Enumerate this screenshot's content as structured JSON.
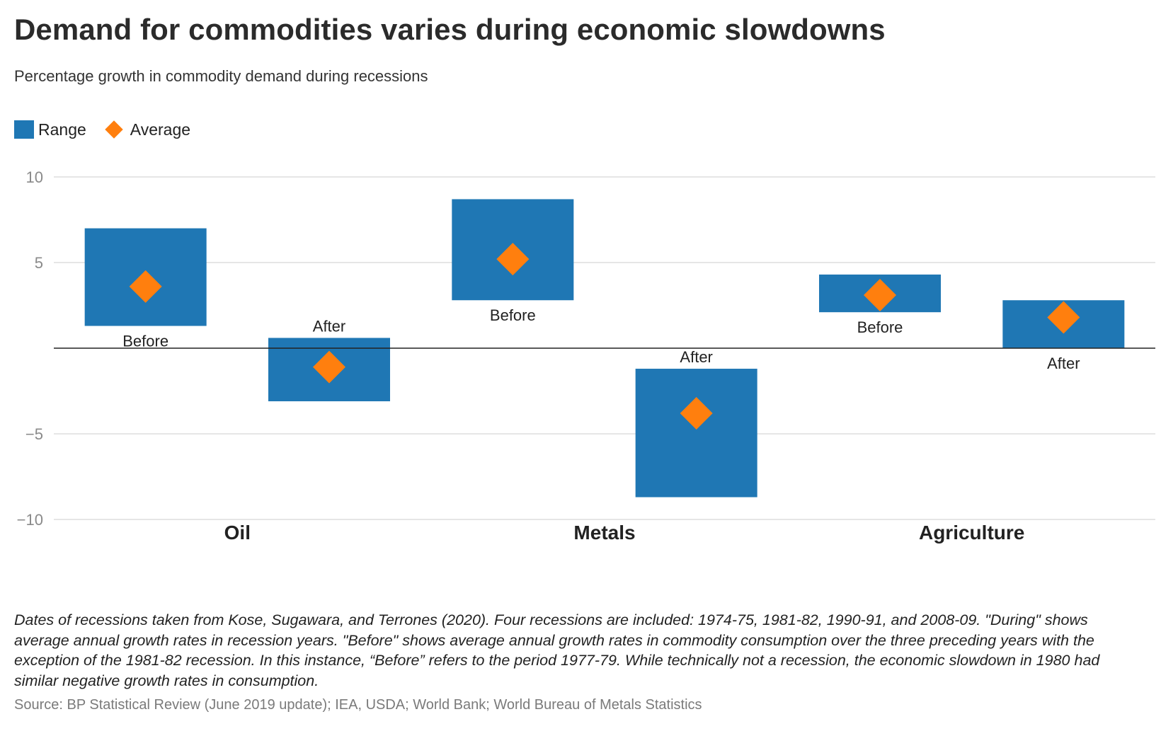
{
  "title": "Demand for commodities varies during economic slowdowns",
  "subtitle": "Percentage growth in commodity demand during recessions",
  "legend": {
    "range_label": "Range",
    "average_label": "Average"
  },
  "colors": {
    "range": "#1f77b4",
    "average": "#ff7f0e",
    "grid": "#dddddd",
    "axis_text": "#8a8a8a"
  },
  "chart_data": {
    "type": "range",
    "title": "Demand for commodities varies during economic slowdowns",
    "subtitle": "Percentage growth in commodity demand during recessions",
    "xlabel": "",
    "ylabel": "",
    "ylim": [
      -10,
      10
    ],
    "yticks": [
      10,
      5,
      0,
      -5,
      -10
    ],
    "ytick_labels": [
      "10",
      "5",
      "",
      "−5",
      "−10"
    ],
    "legend": [
      "Range",
      "Average"
    ],
    "groups": [
      "Oil",
      "Metals",
      "Agriculture"
    ],
    "series": [
      {
        "group": "Oil",
        "period": "Before",
        "min": 1.3,
        "max": 7.0,
        "average": 3.6
      },
      {
        "group": "Oil",
        "period": "After",
        "min": -3.1,
        "max": 0.6,
        "average": -1.1
      },
      {
        "group": "Metals",
        "period": "Before",
        "min": 2.8,
        "max": 8.7,
        "average": 5.2
      },
      {
        "group": "Metals",
        "period": "After",
        "min": -8.7,
        "max": -1.2,
        "average": -3.8
      },
      {
        "group": "Agriculture",
        "period": "Before",
        "min": 2.1,
        "max": 4.3,
        "average": 3.1
      },
      {
        "group": "Agriculture",
        "period": "After",
        "min": 0.0,
        "max": 2.8,
        "average": 1.8
      }
    ]
  },
  "notes": "Dates of recessions taken from Kose, Sugawara, and Terrones (2020). Four recessions are included: 1974-75, 1981-82, 1990-91, and 2008-09. \"During\" shows average annual growth rates in recession years. \"Before\" shows average annual growth rates in commodity consumption over the three preceding years with the exception of the 1981-82 recession. In this instance, “Before” refers to the period 1977-79. While technically not a recession, the economic slowdown in 1980 had similar negative growth rates in consumption.",
  "source": "Source: BP Statistical Review (June 2019 update); IEA, USDA; World Bank; World Bureau of Metals Statistics"
}
